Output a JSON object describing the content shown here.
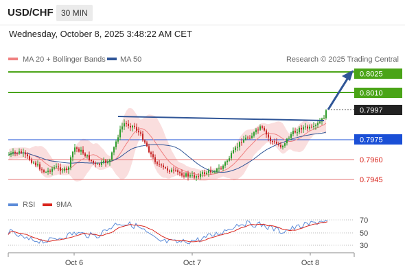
{
  "header": {
    "symbol": "USD/CHF",
    "timeframe": "30 MIN",
    "datetime": "Wednesday, October 8, 2025 3:48:22 AM CET"
  },
  "legend": {
    "ma20": "MA 20 + Bollinger Bands",
    "ma50": "MA 50",
    "credit": "Research © 2025 Trading Central",
    "colors": {
      "ma20": "#f08080",
      "ma50": "#2f5597"
    }
  },
  "levels": [
    {
      "label": "0.8025",
      "style": "green-box",
      "color": "#4aa417"
    },
    {
      "label": "0.8010",
      "style": "green-box",
      "color": "#4aa417"
    },
    {
      "label": "0.7997",
      "style": "dark-box",
      "color": "#222222"
    },
    {
      "label": "0.7975",
      "style": "blue-box",
      "color": "#1a4fd6"
    },
    {
      "label": "0.7960",
      "style": "red-text",
      "color": "#d9241c"
    },
    {
      "label": "0.7945",
      "style": "red-text",
      "color": "#d9241c"
    }
  ],
  "rsi": {
    "legend": {
      "rsi": "RSI",
      "ma": "9MA"
    },
    "colors": {
      "rsi": "#5b8bd8",
      "ma": "#d9241c"
    },
    "ticks": [
      "70",
      "50",
      "30"
    ]
  },
  "xaxis": {
    "ticks": [
      "Oct 6",
      "Oct 7",
      "Oct 8"
    ]
  }
}
